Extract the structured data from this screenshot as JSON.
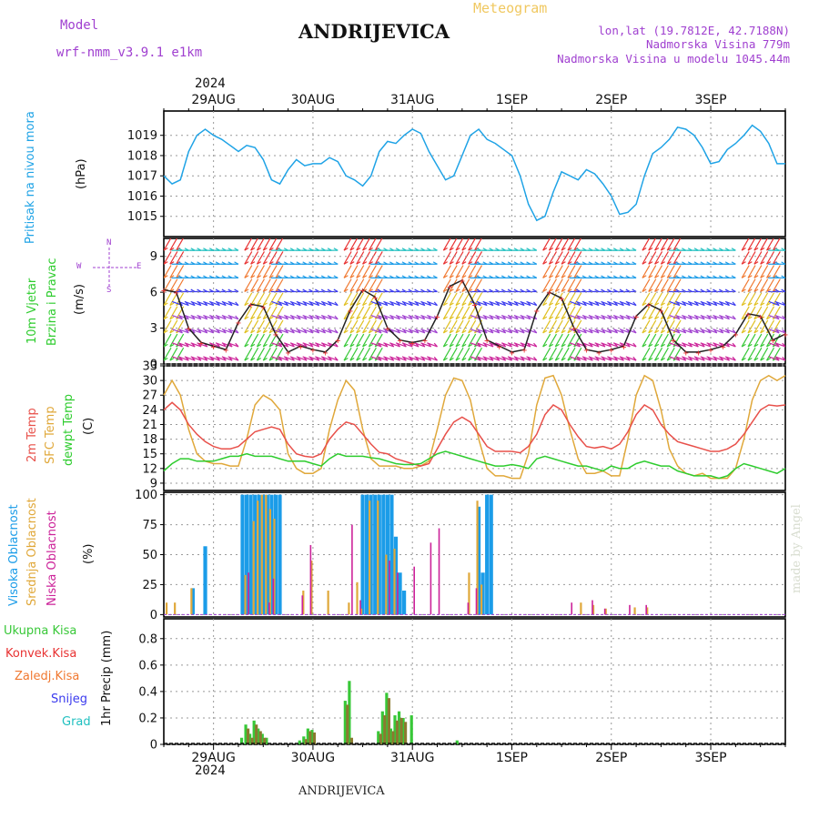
{
  "header": {
    "model_label": "Model",
    "model_name": "wrf-nmm_v3.9.1  e1km",
    "title": "ANDRIJEVICA",
    "meteogram": "Meteogram",
    "lonlat": "lon,lat (19.7812E, 42.7188N)",
    "elevation": "Nadmorska Visina 779m",
    "model_elevation": "Nadmorska Visina u modelu 1045.44m",
    "year_top": "2024",
    "year_bottom": "2024",
    "footer_title": "ANDRIJEVICA",
    "watermark": "made by Angel"
  },
  "colors": {
    "pressure": "#1fa3e6",
    "temp2m": "#e8504a",
    "sfc": "#e0a83a",
    "dewpt": "#2ecc2e",
    "visoka": "#1b9ce8",
    "srednja": "#e0a83a",
    "niska": "#cc2299",
    "ukupna": "#38c838",
    "konvek": "#e83232",
    "zaledj": "#f07830",
    "snijeg": "#3a3aee",
    "grad": "#20c0c0",
    "purple": "#a040d0"
  },
  "days": [
    "29AUG",
    "30AUG",
    "31AUG",
    "1SEP",
    "2SEP",
    "3SEP"
  ],
  "panels": {
    "pressure": {
      "label": "Pritisak na nivou mora",
      "unit": "(hPa)"
    },
    "wind": {
      "label1": "10m Vjetar",
      "label2": "Brzina i Pravac",
      "unit": "(m/s)",
      "compass_n": "N",
      "compass_w": "W",
      "compass_e": "E",
      "compass_s": "S"
    },
    "temp": {
      "label1": "2m Temp",
      "label2": "SFC Temp",
      "label3": "dewpt Temp",
      "unit": "(C)"
    },
    "cloud": {
      "label1": "Visoka Oblacnost",
      "label2": "Srednja Oblacnost",
      "label3": "Niska Oblacnost",
      "unit": "(%)"
    },
    "precip": {
      "legend": [
        "Ukupna Kisa",
        "Konvek.Kisa",
        "Zaledj.Kisa",
        "Snijeg",
        "Grad"
      ],
      "unit": "1hr Precip (mm)"
    }
  },
  "chart_data": [
    {
      "type": "line",
      "name": "pressure",
      "x_unit": "hours from 28AUG 12:00 UTC",
      "xlim": [
        0,
        150
      ],
      "ylim": [
        1014,
        1020.2
      ],
      "yticks": [
        1015,
        1016,
        1017,
        1018,
        1019
      ],
      "series": [
        {
          "x": [
            0,
            2,
            4,
            6,
            8,
            10,
            12,
            14,
            16,
            18,
            20,
            22,
            24,
            26,
            28,
            30,
            32,
            34,
            36,
            38,
            40,
            42,
            44,
            46,
            48,
            50,
            52,
            54,
            56,
            58,
            60,
            62,
            64,
            66,
            68,
            70,
            72,
            74,
            76,
            78,
            80,
            82,
            84,
            86,
            88,
            90,
            92,
            94,
            96,
            98,
            100,
            102,
            104,
            106,
            108,
            110,
            112,
            114,
            116,
            118,
            120,
            122,
            124,
            126,
            128,
            130,
            132,
            134,
            136,
            138,
            140,
            142,
            144,
            146,
            148,
            150
          ],
          "values": [
            1017.0,
            1016.6,
            1016.8,
            1018.2,
            1019.0,
            1019.3,
            1019.0,
            1018.8,
            1018.5,
            1018.2,
            1018.5,
            1018.4,
            1017.8,
            1016.8,
            1016.6,
            1017.3,
            1017.8,
            1017.5,
            1017.6,
            1017.6,
            1017.9,
            1017.7,
            1017.0,
            1016.8,
            1016.5,
            1017.0,
            1018.2,
            1018.7,
            1018.6,
            1019.0,
            1019.3,
            1019.1,
            1018.2,
            1017.5,
            1016.8,
            1017.0,
            1018.0,
            1019.0,
            1019.3,
            1018.8,
            1018.6,
            1018.3,
            1018.0,
            1017.0,
            1015.6,
            1014.8,
            1015.0,
            1016.2,
            1017.2,
            1017.0,
            1016.8,
            1017.3,
            1017.1,
            1016.6,
            1016.0,
            1015.1,
            1015.2,
            1015.6,
            1017.0,
            1018.1,
            1018.4,
            1018.8,
            1019.4,
            1019.3,
            1019.0,
            1018.4,
            1017.6,
            1017.7,
            1018.3,
            1018.6,
            1019.0,
            1019.5,
            1019.2,
            1018.6,
            1017.6,
            1017.6
          ]
        }
      ]
    },
    {
      "type": "line",
      "name": "wind",
      "ylim": [
        0,
        10.5
      ],
      "yticks": [
        0,
        3,
        6,
        9
      ],
      "series": [
        {
          "x": [
            0,
            3,
            6,
            9,
            12,
            15,
            18,
            21,
            24,
            27,
            30,
            33,
            36,
            39,
            42,
            45,
            48,
            51,
            54,
            57,
            60,
            63,
            66,
            69,
            72,
            75,
            78,
            81,
            84,
            87,
            90,
            93,
            96,
            99,
            102,
            105,
            108,
            111,
            114,
            117,
            120,
            123,
            126,
            129,
            132,
            135,
            138,
            141,
            144,
            147,
            150
          ],
          "values": [
            6.2,
            6.0,
            3.0,
            1.8,
            1.5,
            1.2,
            3.5,
            5.0,
            4.8,
            2.5,
            1.0,
            1.5,
            1.2,
            1.0,
            2.0,
            4.5,
            6.2,
            5.6,
            3.0,
            2.0,
            1.8,
            2.0,
            4.0,
            6.5,
            7.0,
            5.0,
            2.0,
            1.5,
            1.0,
            1.2,
            4.5,
            6.0,
            5.5,
            3.0,
            1.2,
            1.0,
            1.2,
            1.5,
            4.0,
            5.0,
            4.5,
            2.0,
            1.0,
            1.0,
            1.2,
            1.5,
            2.5,
            4.2,
            4.0,
            2.0,
            2.5
          ]
        }
      ]
    },
    {
      "type": "line",
      "name": "temperature",
      "ylim": [
        7.5,
        33
      ],
      "yticks": [
        9,
        12,
        15,
        18,
        21,
        24,
        27,
        30,
        33
      ],
      "series": [
        {
          "name": "2m Temp",
          "x": [
            0,
            2,
            4,
            6,
            8,
            10,
            12,
            14,
            16,
            18,
            20,
            22,
            24,
            26,
            28,
            30,
            32,
            34,
            36,
            38,
            40,
            42,
            44,
            46,
            48,
            50,
            52,
            54,
            56,
            58,
            60,
            62,
            64,
            66,
            68,
            70,
            72,
            74,
            76,
            78,
            80,
            82,
            84,
            86,
            88,
            90,
            92,
            94,
            96,
            98,
            100,
            102,
            104,
            106,
            108,
            110,
            112,
            114,
            116,
            118,
            120,
            122,
            124,
            126,
            128,
            130,
            132,
            134,
            136,
            138,
            140,
            142,
            144,
            146,
            148,
            150
          ],
          "values": [
            24,
            25.5,
            24,
            21,
            19,
            17.5,
            16.5,
            16,
            16,
            16.5,
            18,
            19.5,
            20,
            20.5,
            20,
            17,
            15,
            14.5,
            14.3,
            15,
            18,
            20,
            21.5,
            21,
            19,
            17,
            15.3,
            15,
            14,
            13.5,
            13,
            12.5,
            13,
            16,
            19,
            21.5,
            22.5,
            21.5,
            19,
            16.5,
            15.5,
            15.5,
            15.5,
            15.2,
            16.5,
            19,
            23,
            25,
            24,
            21,
            18.5,
            16.5,
            16.2,
            16.5,
            16,
            17,
            19.5,
            23,
            25,
            24,
            21,
            19,
            17.5,
            17,
            16.5,
            16,
            15.5,
            15.5,
            16,
            17,
            19,
            21.5,
            24,
            25,
            24.8,
            25
          ]
        },
        {
          "name": "SFC Temp",
          "x": [
            0,
            2,
            4,
            6,
            8,
            10,
            12,
            14,
            16,
            18,
            20,
            22,
            24,
            26,
            28,
            30,
            32,
            34,
            36,
            38,
            40,
            42,
            44,
            46,
            48,
            50,
            52,
            54,
            56,
            58,
            60,
            62,
            64,
            66,
            68,
            70,
            72,
            74,
            76,
            78,
            80,
            82,
            84,
            86,
            88,
            90,
            92,
            94,
            96,
            98,
            100,
            102,
            104,
            106,
            108,
            110,
            112,
            114,
            116,
            118,
            120,
            122,
            124,
            126,
            128,
            130,
            132,
            134,
            136,
            138,
            140,
            142,
            144,
            146,
            148,
            150
          ],
          "values": [
            27,
            30,
            27,
            20,
            15,
            13.5,
            13,
            13,
            12.5,
            12.5,
            18,
            25,
            27,
            26,
            24,
            15,
            12,
            11,
            11,
            12,
            20,
            26,
            30,
            28,
            20,
            14,
            12.5,
            12.5,
            12.5,
            12,
            12,
            12.5,
            13.5,
            20,
            27,
            30.5,
            30,
            26,
            18,
            12,
            10.5,
            10.5,
            10,
            10,
            15,
            25,
            30.5,
            31,
            27,
            20,
            14,
            11,
            11,
            11.5,
            10.5,
            10.5,
            18,
            27,
            31,
            30,
            24,
            16,
            12.5,
            11,
            10.5,
            11,
            10,
            10,
            10,
            12,
            18,
            26,
            30,
            31,
            30,
            31
          ]
        },
        {
          "name": "dewpt Temp",
          "x": [
            0,
            2,
            4,
            6,
            8,
            10,
            12,
            14,
            16,
            18,
            20,
            22,
            24,
            26,
            28,
            30,
            32,
            34,
            36,
            38,
            40,
            42,
            44,
            46,
            48,
            50,
            52,
            54,
            56,
            58,
            60,
            62,
            64,
            66,
            68,
            70,
            72,
            74,
            76,
            78,
            80,
            82,
            84,
            86,
            88,
            90,
            92,
            94,
            96,
            98,
            100,
            102,
            104,
            106,
            108,
            110,
            112,
            114,
            116,
            118,
            120,
            122,
            124,
            126,
            128,
            130,
            132,
            134,
            136,
            138,
            140,
            142,
            144,
            146,
            148,
            150
          ],
          "values": [
            11.5,
            13,
            14,
            14,
            13.5,
            13.5,
            13.5,
            14,
            14.5,
            14.5,
            15,
            14.5,
            14.5,
            14.5,
            14,
            13.5,
            13.5,
            13.5,
            13,
            12.5,
            14,
            15,
            14.5,
            14.5,
            14.5,
            14.2,
            14,
            13.5,
            13,
            12.8,
            12.8,
            13,
            14,
            15,
            15.5,
            15,
            14.5,
            14,
            13.5,
            13,
            12.5,
            12.5,
            12.8,
            12.5,
            12,
            14,
            14.5,
            14,
            13.5,
            13,
            12.5,
            12.5,
            12,
            11.5,
            12.5,
            12,
            12,
            13,
            13.5,
            13,
            12.5,
            12.5,
            11.5,
            11,
            10.5,
            10.5,
            10.5,
            10,
            10.5,
            12,
            13,
            12.5,
            12,
            11.5,
            11,
            12
          ]
        }
      ]
    },
    {
      "type": "bar",
      "name": "cloud",
      "ylim": [
        -2,
        102
      ],
      "yticks": [
        0,
        25,
        50,
        75,
        100
      ],
      "series": [
        {
          "name": "Visoka Oblacnost",
          "x": [
            7,
            10,
            19,
            20,
            21,
            22,
            23,
            24,
            25,
            26,
            27,
            28,
            48,
            49,
            50,
            51,
            52,
            53,
            54,
            55,
            56,
            57,
            58,
            76,
            77,
            78,
            79
          ],
          "values": [
            22,
            57,
            100,
            100,
            100,
            100,
            100,
            100,
            100,
            100,
            100,
            100,
            100,
            100,
            100,
            100,
            100,
            100,
            100,
            100,
            65,
            35,
            20,
            90,
            35,
            100,
            100
          ]
        },
        {
          "name": "Srednja Oblacnost",
          "x": [
            1,
            3,
            7,
            20,
            22,
            23,
            24,
            25,
            26,
            27,
            34,
            36,
            40,
            45,
            47,
            48,
            50,
            52,
            54,
            56,
            74,
            76,
            77,
            101,
            104,
            107,
            114,
            117
          ],
          "values": [
            10,
            10,
            22,
            33,
            78,
            95,
            100,
            100,
            88,
            80,
            20,
            45,
            20,
            10,
            27,
            5,
            95,
            95,
            50,
            55,
            35,
            95,
            25,
            10,
            8,
            5,
            6,
            6
          ]
        },
        {
          "name": "Niska Oblacnost",
          "x": [
            20,
            25,
            26,
            33,
            35,
            45,
            47,
            54,
            56,
            60,
            64,
            66,
            73,
            75,
            98,
            103,
            106,
            112,
            116
          ],
          "values": [
            35,
            10,
            30,
            16,
            58,
            75,
            12,
            45,
            35,
            40,
            60,
            72,
            10,
            22,
            10,
            12,
            5,
            8,
            8
          ]
        }
      ]
    },
    {
      "type": "bar",
      "name": "precipitation",
      "ylim": [
        0,
        0.95
      ],
      "yticks": [
        0,
        0.2,
        0.4,
        0.6,
        0.8
      ],
      "series": [
        {
          "name": "Ukupna Kisa",
          "x": [
            19,
            20,
            21,
            22,
            23,
            24,
            25,
            33,
            34,
            35,
            36,
            44,
            45,
            52,
            53,
            54,
            55,
            56,
            57,
            58,
            60,
            71
          ],
          "values": [
            0.05,
            0.15,
            0.08,
            0.18,
            0.12,
            0.08,
            0.05,
            0.03,
            0.06,
            0.12,
            0.11,
            0.33,
            0.48,
            0.1,
            0.25,
            0.39,
            0.12,
            0.22,
            0.25,
            0.2,
            0.22,
            0.03
          ]
        },
        {
          "name": "Konvek.Kisa",
          "x": [
            20,
            21,
            22,
            23,
            24,
            34,
            35,
            36,
            44,
            45,
            52,
            53,
            54,
            55,
            56,
            57,
            58
          ],
          "values": [
            0.12,
            0.05,
            0.15,
            0.1,
            0.05,
            0.04,
            0.1,
            0.09,
            0.3,
            0.05,
            0.08,
            0.22,
            0.35,
            0.1,
            0.18,
            0.2,
            0.17
          ]
        }
      ]
    }
  ]
}
